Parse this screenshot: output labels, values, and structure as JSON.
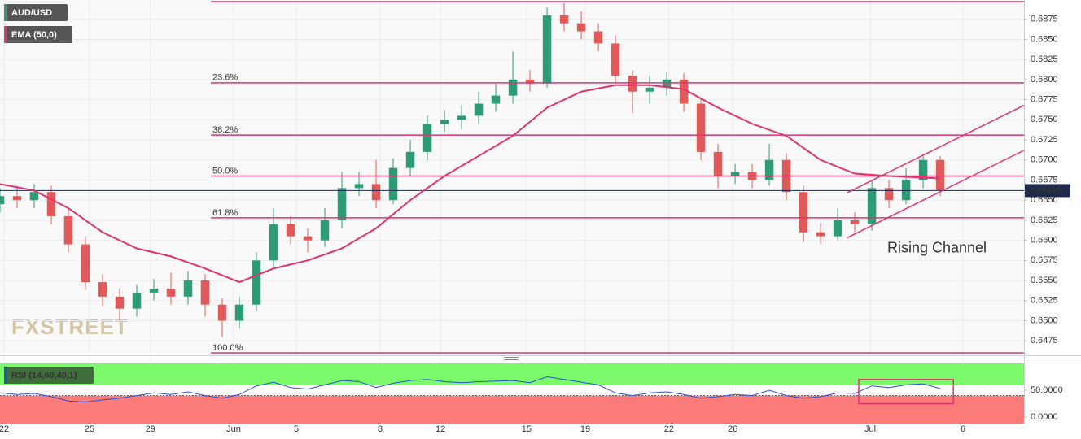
{
  "chart_data": {
    "type": "candlestick",
    "symbol": "AUD/USD",
    "watermark": "FXSTREET",
    "annotation": {
      "text": "Rising Channel",
      "x": 155.7,
      "y": 0.659
    },
    "colors": {
      "up": "#2e9b77",
      "down": "#e05a5a",
      "line": "#e0336d",
      "price": "#1d2a4d"
    },
    "x": [
      0,
      3,
      6,
      9,
      12,
      15,
      18,
      21,
      24,
      27,
      30,
      33,
      36,
      39,
      42,
      45,
      48,
      51,
      54,
      57,
      60,
      63,
      66,
      69,
      72,
      75,
      78,
      81,
      84,
      87,
      90,
      93,
      96,
      99,
      102,
      105,
      108,
      111,
      114,
      117,
      120,
      123,
      126,
      129,
      132,
      135,
      138,
      141,
      144,
      147,
      150,
      153,
      156,
      159,
      162,
      165
    ],
    "open": [
      0.6645,
      0.6655,
      0.665,
      0.666,
      0.663,
      0.6595,
      0.6548,
      0.653,
      0.6515,
      0.6535,
      0.654,
      0.653,
      0.655,
      0.652,
      0.65,
      0.652,
      0.6575,
      0.662,
      0.6605,
      0.66,
      0.6625,
      0.6665,
      0.667,
      0.665,
      0.669,
      0.671,
      0.6745,
      0.675,
      0.6755,
      0.677,
      0.678,
      0.68,
      0.6795,
      0.688,
      0.687,
      0.686,
      0.6845,
      0.6805,
      0.6785,
      0.679,
      0.68,
      0.677,
      0.671,
      0.668,
      0.6685,
      0.6675,
      0.67,
      0.666,
      0.661,
      0.6605,
      0.6625,
      0.662,
      0.6665,
      0.665,
      0.6675,
      0.67
    ],
    "high": [
      0.6665,
      0.6668,
      0.667,
      0.6668,
      0.664,
      0.6605,
      0.6558,
      0.654,
      0.6545,
      0.6552,
      0.656,
      0.6562,
      0.6558,
      0.6528,
      0.653,
      0.6585,
      0.664,
      0.663,
      0.6615,
      0.664,
      0.6685,
      0.6685,
      0.67,
      0.6702,
      0.6725,
      0.6755,
      0.6762,
      0.6768,
      0.6785,
      0.6795,
      0.6835,
      0.6812,
      0.689,
      0.6895,
      0.6885,
      0.687,
      0.6855,
      0.6812,
      0.6805,
      0.681,
      0.6808,
      0.6778,
      0.672,
      0.6695,
      0.6695,
      0.672,
      0.6708,
      0.6668,
      0.6622,
      0.664,
      0.6635,
      0.6675,
      0.6675,
      0.669,
      0.6708,
      0.6705
    ],
    "low": [
      0.6635,
      0.664,
      0.664,
      0.662,
      0.6585,
      0.6538,
      0.6518,
      0.65,
      0.6505,
      0.6525,
      0.652,
      0.652,
      0.6505,
      0.648,
      0.649,
      0.6512,
      0.6565,
      0.6595,
      0.6585,
      0.6592,
      0.6615,
      0.6655,
      0.664,
      0.6645,
      0.668,
      0.67,
      0.6735,
      0.6738,
      0.6745,
      0.676,
      0.677,
      0.6785,
      0.679,
      0.686,
      0.685,
      0.6835,
      0.6795,
      0.6758,
      0.677,
      0.678,
      0.676,
      0.67,
      0.6665,
      0.667,
      0.6665,
      0.6668,
      0.665,
      0.6598,
      0.6595,
      0.66,
      0.661,
      0.6612,
      0.664,
      0.6645,
      0.6665,
      0.6655
    ],
    "close": [
      0.6655,
      0.665,
      0.666,
      0.663,
      0.6595,
      0.6548,
      0.653,
      0.6515,
      0.6535,
      0.654,
      0.653,
      0.655,
      0.652,
      0.65,
      0.652,
      0.6575,
      0.662,
      0.6605,
      0.66,
      0.6625,
      0.6665,
      0.667,
      0.665,
      0.669,
      0.671,
      0.6745,
      0.675,
      0.6755,
      0.677,
      0.678,
      0.68,
      0.6795,
      0.688,
      0.687,
      0.686,
      0.6845,
      0.6805,
      0.6785,
      0.679,
      0.68,
      0.677,
      0.671,
      0.668,
      0.6685,
      0.6675,
      0.67,
      0.666,
      0.661,
      0.6605,
      0.6625,
      0.662,
      0.6665,
      0.665,
      0.6675,
      0.67,
      0.6662
    ],
    "ema": {
      "name": "EMA (50,0)",
      "x": [
        0,
        6,
        12,
        18,
        24,
        30,
        36,
        42,
        48,
        54,
        60,
        66,
        72,
        78,
        84,
        90,
        96,
        102,
        108,
        114,
        120,
        126,
        132,
        138,
        144,
        150,
        156,
        162,
        165
      ],
      "values": [
        0.667,
        0.6662,
        0.664,
        0.661,
        0.659,
        0.658,
        0.6565,
        0.6548,
        0.6565,
        0.6575,
        0.659,
        0.6615,
        0.665,
        0.668,
        0.6705,
        0.673,
        0.6765,
        0.6785,
        0.6793,
        0.6793,
        0.6788,
        0.6765,
        0.6745,
        0.673,
        0.67,
        0.6683,
        0.668,
        0.6678,
        0.6677
      ]
    },
    "fib_levels": [
      {
        "value": 0.6897,
        "label": null
      },
      {
        "value": 0.6796,
        "label": "23.6%"
      },
      {
        "value": 0.6731,
        "label": "38.2%"
      },
      {
        "value": 0.668,
        "label": "50.0%"
      },
      {
        "value": 0.6628,
        "label": "61.8%"
      },
      {
        "value": 0.646,
        "label": "100.0%"
      }
    ],
    "fib_start": 37,
    "channel": [
      {
        "x": [
          148.6,
          179.7
        ],
        "y": [
          0.6659,
          0.6768
        ]
      },
      {
        "x": [
          148.6,
          179.7
        ],
        "y": [
          0.6603,
          0.6712
        ]
      }
    ],
    "last_price": {
      "value": 0.66619,
      "label": "0.66619"
    },
    "xlim": [
      0,
      179.7
    ],
    "ylim": [
      0.6457,
      0.6899
    ],
    "xticks": [
      {
        "value": 0.7,
        "label": "22"
      },
      {
        "value": 15.7,
        "label": "25"
      },
      {
        "value": 26.4,
        "label": "29"
      },
      {
        "value": 41,
        "label": "Jun"
      },
      {
        "value": 52,
        "label": "5"
      },
      {
        "value": 66.7,
        "label": "8"
      },
      {
        "value": 77.3,
        "label": "12"
      },
      {
        "value": 92.4,
        "label": "15"
      },
      {
        "value": 102.7,
        "label": "19"
      },
      {
        "value": 117.4,
        "label": "22"
      },
      {
        "value": 128.6,
        "label": "26"
      },
      {
        "value": 152.7,
        "label": "Jul"
      },
      {
        "value": 169,
        "label": "6"
      }
    ],
    "yticks": [
      0.6475,
      {
        "value": 0.65,
        "label": "0.6500"
      },
      0.6525,
      {
        "value": 0.655,
        "label": "0.6550"
      },
      0.6575,
      {
        "value": 0.66,
        "label": "0.6600"
      },
      0.6625,
      {
        "value": 0.665,
        "label": "0.6650"
      },
      0.6675,
      {
        "value": 0.67,
        "label": "0.6700"
      },
      0.6725,
      {
        "value": 0.675,
        "label": "0.6750"
      },
      0.6775,
      {
        "value": 0.68,
        "label": "0.6800"
      },
      0.6825,
      {
        "value": 0.685,
        "label": "0.6850"
      },
      0.6875
    ],
    "rsi": {
      "name": "RSI (14,60,40,1)",
      "color": "#2a4fd6",
      "upper": 60,
      "lower": 40,
      "values": [
        45,
        42,
        44,
        38,
        30,
        28,
        32,
        35,
        40,
        45,
        42,
        47,
        40,
        35,
        42,
        58,
        65,
        55,
        52,
        60,
        68,
        66,
        55,
        63,
        68,
        70,
        66,
        64,
        66,
        67,
        68,
        64,
        75,
        70,
        65,
        60,
        45,
        40,
        45,
        47,
        42,
        35,
        38,
        42,
        40,
        50,
        40,
        35,
        38,
        45,
        44,
        58,
        55,
        60,
        62,
        53
      ],
      "ylim": [
        0,
        100
      ],
      "yticks": [
        {
          "value": 0,
          "label": "0.0000"
        },
        {
          "value": 50,
          "label": "50.0000"
        }
      ],
      "highlight": {
        "x": [
          150.7,
          167.3
        ],
        "y": [
          70,
          25
        ]
      }
    }
  }
}
